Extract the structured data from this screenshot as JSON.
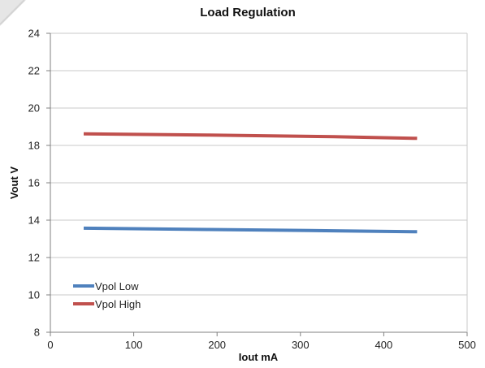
{
  "chart_data": {
    "type": "line",
    "title": "Load Regulation",
    "xlabel": "Iout mA",
    "ylabel": "Vout V",
    "xlim": [
      0,
      500
    ],
    "ylim": [
      8,
      24
    ],
    "x_ticks": [
      "0",
      "100",
      "200",
      "300",
      "400",
      "500"
    ],
    "y_ticks": [
      "8",
      "10",
      "12",
      "14",
      "16",
      "18",
      "20",
      "22",
      "24"
    ],
    "grid": "horizontal",
    "legend_position": "bottom-left",
    "series": [
      {
        "name": "Vpol Low",
        "color": "#4f81bd",
        "x": [
          40,
          190,
          340,
          440
        ],
        "y": [
          13.57,
          13.5,
          13.43,
          13.38
        ]
      },
      {
        "name": "Vpol High",
        "color": "#c0504d",
        "x": [
          40,
          190,
          340,
          440
        ],
        "y": [
          18.62,
          18.55,
          18.47,
          18.38
        ]
      }
    ]
  }
}
